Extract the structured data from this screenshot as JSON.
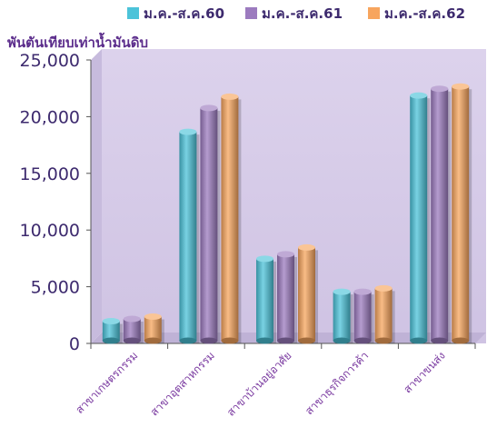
{
  "chart_data": {
    "type": "bar",
    "title": "",
    "unit_label": "พันตันเทียบเท่าน้ำมันดิบ",
    "xlabel": "",
    "ylabel": "",
    "ylim": [
      0,
      25000
    ],
    "y_ticks": [
      "0",
      "5,000",
      "10,000",
      "15,000",
      "20,000",
      "25,000"
    ],
    "categories": [
      "สาขาเกษตรกรรม",
      "สาขาอุตสาหกรรม",
      "สาขาบ้านอยู่อาศัย",
      "สาขาธุรกิจการค้า",
      "สาขาขนส่ง"
    ],
    "series": [
      {
        "name": "ม.ค.-ส.ค.60",
        "color": "#4cc3d9",
        "values": [
          1800,
          18500,
          7300,
          4400,
          21700
        ]
      },
      {
        "name": "ม.ค.-ส.ค.61",
        "color": "#9c7bbf",
        "values": [
          2000,
          20600,
          7700,
          4400,
          22300
        ]
      },
      {
        "name": "ม.ค.-ส.ค.62",
        "color": "#f7a55e",
        "values": [
          2200,
          21600,
          8300,
          4700,
          22500
        ]
      }
    ],
    "legend_position": "top",
    "grid": false
  }
}
